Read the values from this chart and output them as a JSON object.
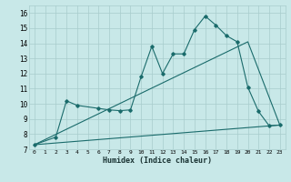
{
  "xlabel": "Humidex (Indice chaleur)",
  "xlim": [
    -0.5,
    23.5
  ],
  "ylim": [
    7,
    16.5
  ],
  "xticks": [
    0,
    1,
    2,
    3,
    4,
    5,
    6,
    7,
    8,
    9,
    10,
    11,
    12,
    13,
    14,
    15,
    16,
    17,
    18,
    19,
    20,
    21,
    22,
    23
  ],
  "yticks": [
    7,
    8,
    9,
    10,
    11,
    12,
    13,
    14,
    15,
    16
  ],
  "background_color": "#c8e8e8",
  "grid_color": "#a8cccc",
  "line_color": "#1a6b6b",
  "line1_x": [
    0,
    2,
    3,
    4,
    6,
    7,
    8,
    9,
    10,
    11,
    12,
    13,
    14,
    15,
    16,
    17,
    18,
    19,
    20,
    21,
    22,
    23
  ],
  "line1_y": [
    7.3,
    7.8,
    10.2,
    9.9,
    9.7,
    9.6,
    9.55,
    9.6,
    11.8,
    13.8,
    12.0,
    13.3,
    13.3,
    14.9,
    15.8,
    15.2,
    14.5,
    14.1,
    11.1,
    9.5,
    8.55,
    8.6
  ],
  "line2_x": [
    0,
    23
  ],
  "line2_y": [
    7.3,
    8.6
  ],
  "line3_x": [
    0,
    20,
    23
  ],
  "line3_y": [
    7.3,
    14.1,
    8.6
  ]
}
